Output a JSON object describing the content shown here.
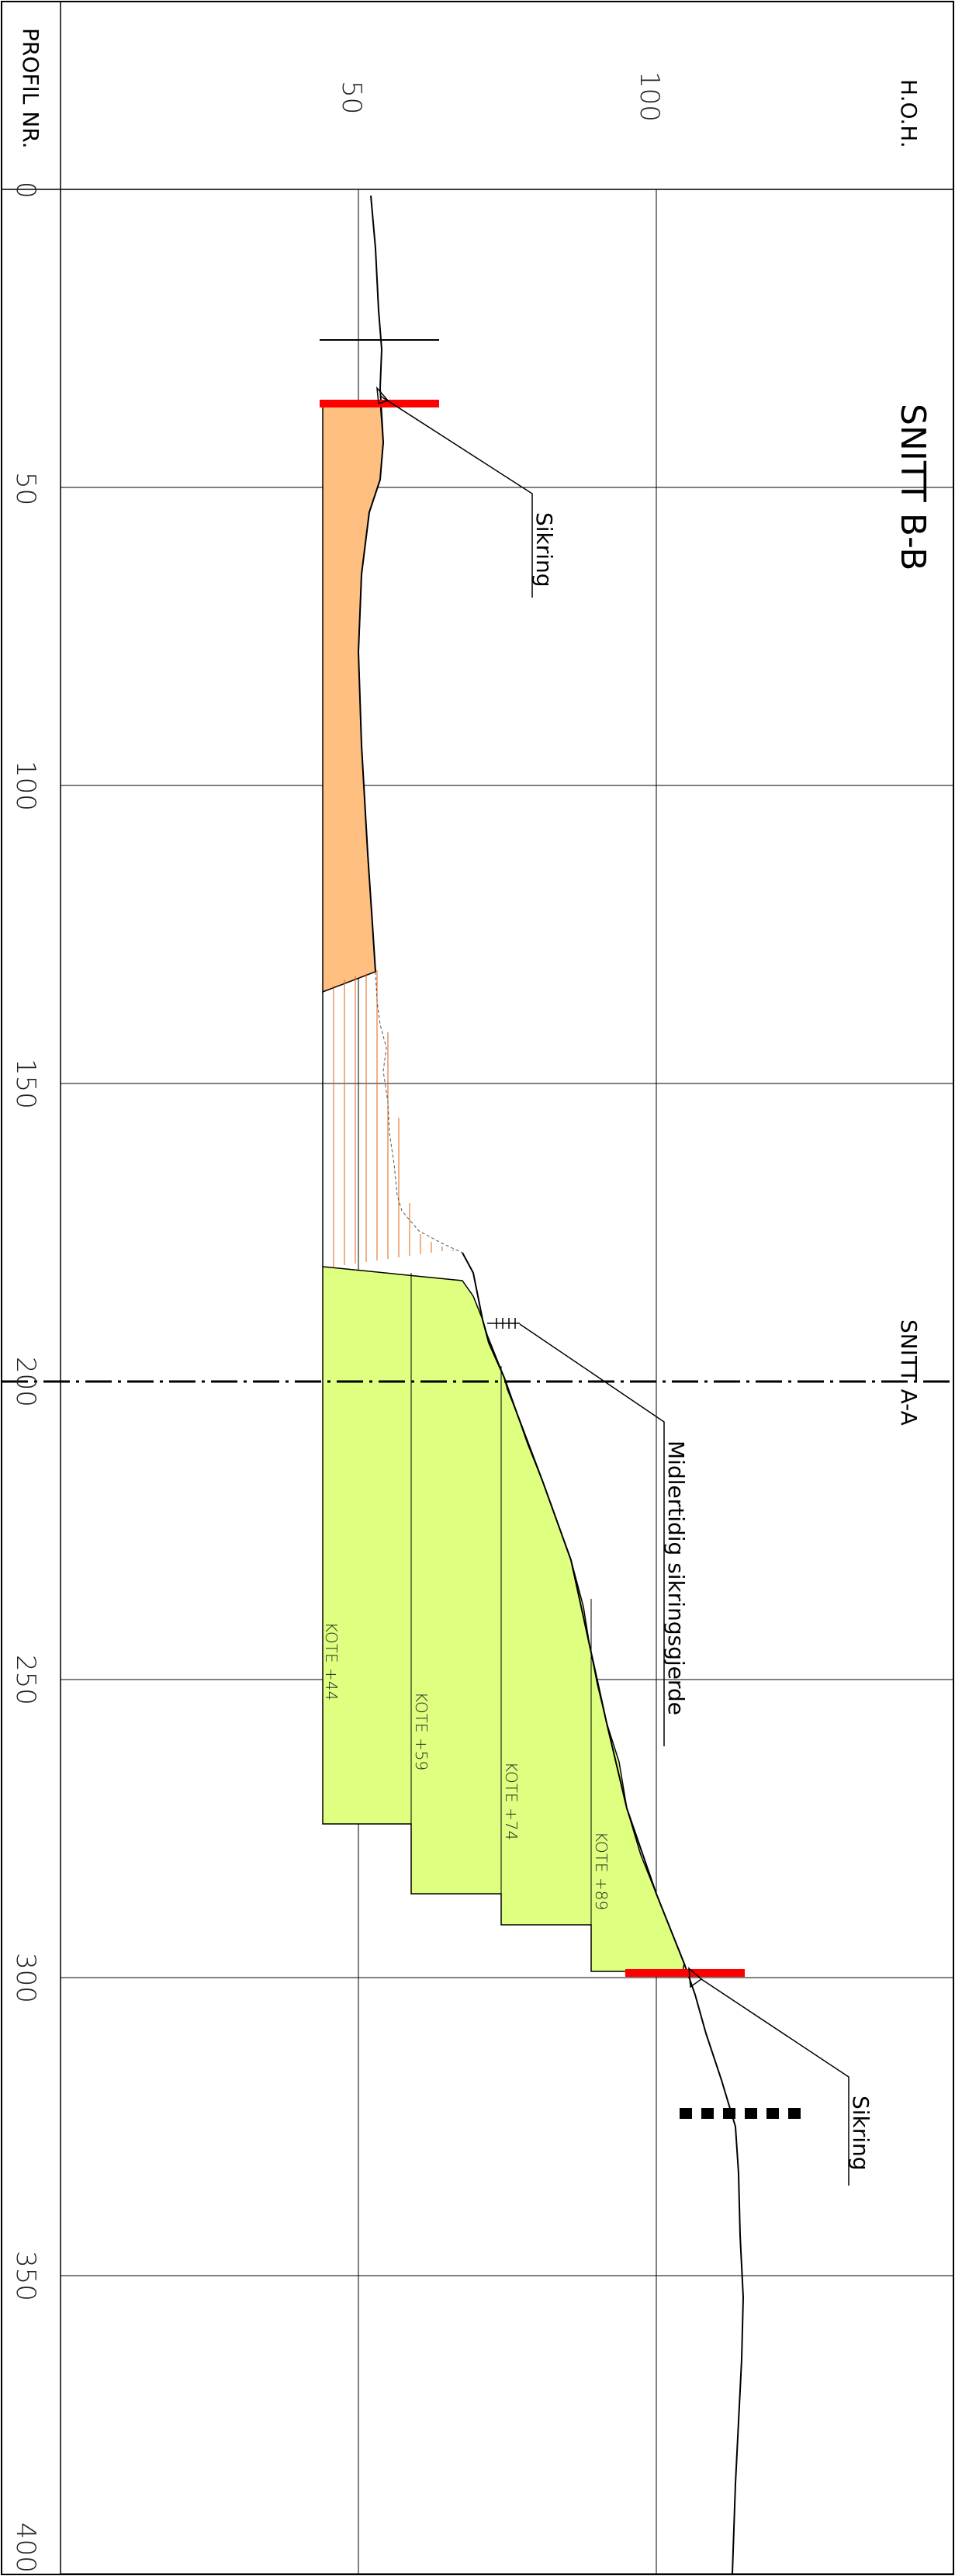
{
  "header": {
    "hoh_label": "H.O.H.",
    "profil_label": "PROFIL NR."
  },
  "title": "SNITT B-B",
  "section_ref": "SNITT A-A",
  "elevation_ticks": [
    "50",
    "100"
  ],
  "profile_ticks": [
    "0",
    "50",
    "100",
    "150",
    "200",
    "250",
    "300",
    "350",
    "400"
  ],
  "annotations": {
    "sikring_top": "Sikring",
    "sikring_bottom": "Sikring",
    "fence": "Midlertidig sikringsgjerde"
  },
  "kote_labels": [
    "KOTE +44",
    "KOTE +59",
    "KOTE +74",
    "KOTE +89"
  ],
  "colors": {
    "fill_area": "#ffbf80",
    "excavation": "#deff80",
    "sikring": "#ff0000",
    "hatch": "#e06010"
  }
}
